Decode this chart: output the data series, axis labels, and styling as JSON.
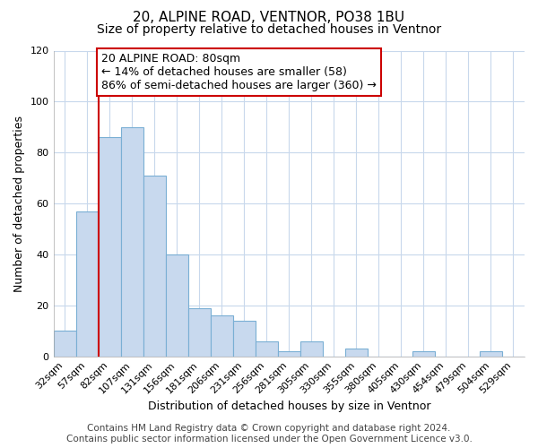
{
  "title": "20, ALPINE ROAD, VENTNOR, PO38 1BU",
  "subtitle": "Size of property relative to detached houses in Ventnor",
  "xlabel": "Distribution of detached houses by size in Ventnor",
  "ylabel": "Number of detached properties",
  "bar_labels": [
    "32sqm",
    "57sqm",
    "82sqm",
    "107sqm",
    "131sqm",
    "156sqm",
    "181sqm",
    "206sqm",
    "231sqm",
    "256sqm",
    "281sqm",
    "305sqm",
    "330sqm",
    "355sqm",
    "380sqm",
    "405sqm",
    "430sqm",
    "454sqm",
    "479sqm",
    "504sqm",
    "529sqm"
  ],
  "bar_values": [
    10,
    57,
    86,
    90,
    71,
    40,
    19,
    16,
    14,
    6,
    2,
    6,
    0,
    3,
    0,
    0,
    2,
    0,
    0,
    2,
    0
  ],
  "bar_color": "#c8d9ee",
  "bar_edge_color": "#7aafd4",
  "vline_x_index": 2,
  "vline_color": "#cc0000",
  "annotation_text": "20 ALPINE ROAD: 80sqm\n← 14% of detached houses are smaller (58)\n86% of semi-detached houses are larger (360) →",
  "annotation_box_color": "#ffffff",
  "annotation_box_edge_color": "#cc0000",
  "ylim": [
    0,
    120
  ],
  "yticks": [
    0,
    20,
    40,
    60,
    80,
    100,
    120
  ],
  "footer_line1": "Contains HM Land Registry data © Crown copyright and database right 2024.",
  "footer_line2": "Contains public sector information licensed under the Open Government Licence v3.0.",
  "bg_color": "#ffffff",
  "plot_bg_color": "#ffffff",
  "grid_color": "#c8d8ec",
  "title_fontsize": 11,
  "subtitle_fontsize": 10,
  "axis_label_fontsize": 9,
  "tick_fontsize": 8,
  "annotation_fontsize": 9,
  "footer_fontsize": 7.5
}
